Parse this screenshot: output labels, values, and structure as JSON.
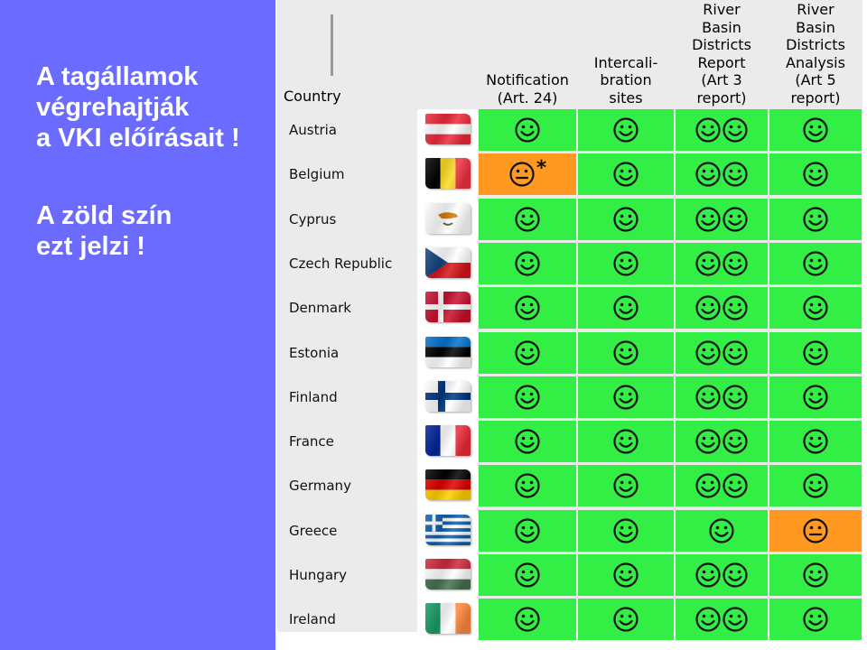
{
  "slide": {
    "title_lines": [
      "A tagállamok",
      "végrehajtják",
      "a VKI előírásait !"
    ],
    "note_lines": [
      "A zöld szín",
      "ezt jelzi !"
    ]
  },
  "table": {
    "country_header": "Country",
    "columns": [
      {
        "key": "notification",
        "lines": [
          "Notification",
          "(Art. 24)"
        ]
      },
      {
        "key": "intercalibration",
        "lines": [
          "Intercali-",
          "bration",
          "sites"
        ]
      },
      {
        "key": "rbd_report",
        "lines": [
          "River",
          "Basin",
          "Districts",
          "Report",
          "(Art 3",
          "report)"
        ]
      },
      {
        "key": "rbd_analysis",
        "lines": [
          "River",
          "Basin",
          "Districts",
          "Analysis",
          "(Art 5",
          "report)"
        ]
      }
    ],
    "rows": [
      {
        "country": "Austria",
        "flag": "austria-flag",
        "cells": [
          {
            "status": "green",
            "icon": "happy",
            "count": 1
          },
          {
            "status": "green",
            "icon": "happy",
            "count": 1
          },
          {
            "status": "green",
            "icon": "happy",
            "count": 2
          },
          {
            "status": "green",
            "icon": "happy",
            "count": 1
          }
        ]
      },
      {
        "country": "Belgium",
        "flag": "belgium-flag",
        "cells": [
          {
            "status": "orange",
            "icon": "neutral",
            "count": 1,
            "mark": "*"
          },
          {
            "status": "green",
            "icon": "happy",
            "count": 1
          },
          {
            "status": "green",
            "icon": "happy",
            "count": 2
          },
          {
            "status": "green",
            "icon": "happy",
            "count": 1
          }
        ]
      },
      {
        "country": "Cyprus",
        "flag": "cyprus-flag",
        "cells": [
          {
            "status": "green",
            "icon": "happy",
            "count": 1
          },
          {
            "status": "green",
            "icon": "happy",
            "count": 1
          },
          {
            "status": "green",
            "icon": "happy",
            "count": 2
          },
          {
            "status": "green",
            "icon": "happy",
            "count": 1
          }
        ]
      },
      {
        "country": "Czech Republic",
        "flag": "czech-flag",
        "cells": [
          {
            "status": "green",
            "icon": "happy",
            "count": 1
          },
          {
            "status": "green",
            "icon": "happy",
            "count": 1
          },
          {
            "status": "green",
            "icon": "happy",
            "count": 2
          },
          {
            "status": "green",
            "icon": "happy",
            "count": 1
          }
        ]
      },
      {
        "country": "Denmark",
        "flag": "denmark-flag",
        "cells": [
          {
            "status": "green",
            "icon": "happy",
            "count": 1
          },
          {
            "status": "green",
            "icon": "happy",
            "count": 1
          },
          {
            "status": "green",
            "icon": "happy",
            "count": 2
          },
          {
            "status": "green",
            "icon": "happy",
            "count": 1
          }
        ]
      },
      {
        "country": "Estonia",
        "flag": "estonia-flag",
        "cells": [
          {
            "status": "green",
            "icon": "happy",
            "count": 1
          },
          {
            "status": "green",
            "icon": "happy",
            "count": 1
          },
          {
            "status": "green",
            "icon": "happy",
            "count": 2
          },
          {
            "status": "green",
            "icon": "happy",
            "count": 1
          }
        ]
      },
      {
        "country": "Finland",
        "flag": "finland-flag",
        "cells": [
          {
            "status": "green",
            "icon": "happy",
            "count": 1
          },
          {
            "status": "green",
            "icon": "happy",
            "count": 1
          },
          {
            "status": "green",
            "icon": "happy",
            "count": 2
          },
          {
            "status": "green",
            "icon": "happy",
            "count": 1
          }
        ]
      },
      {
        "country": "France",
        "flag": "france-flag",
        "cells": [
          {
            "status": "green",
            "icon": "happy",
            "count": 1
          },
          {
            "status": "green",
            "icon": "happy",
            "count": 1
          },
          {
            "status": "green",
            "icon": "happy",
            "count": 2
          },
          {
            "status": "green",
            "icon": "happy",
            "count": 1
          }
        ]
      },
      {
        "country": "Germany",
        "flag": "germany-flag",
        "cells": [
          {
            "status": "green",
            "icon": "happy",
            "count": 1
          },
          {
            "status": "green",
            "icon": "happy",
            "count": 1
          },
          {
            "status": "green",
            "icon": "happy",
            "count": 2
          },
          {
            "status": "green",
            "icon": "happy",
            "count": 1
          }
        ]
      },
      {
        "country": "Greece",
        "flag": "greece-flag",
        "cells": [
          {
            "status": "green",
            "icon": "happy",
            "count": 1
          },
          {
            "status": "green",
            "icon": "happy",
            "count": 1
          },
          {
            "status": "green",
            "icon": "happy",
            "count": 1
          },
          {
            "status": "orange",
            "icon": "neutral",
            "count": 1
          }
        ]
      },
      {
        "country": "Hungary",
        "flag": "hungary-flag",
        "cells": [
          {
            "status": "green",
            "icon": "happy",
            "count": 1
          },
          {
            "status": "green",
            "icon": "happy",
            "count": 1
          },
          {
            "status": "green",
            "icon": "happy",
            "count": 2
          },
          {
            "status": "green",
            "icon": "happy",
            "count": 1
          }
        ]
      },
      {
        "country": "Ireland",
        "flag": "ireland-flag",
        "cells": [
          {
            "status": "green",
            "icon": "happy",
            "count": 1
          },
          {
            "status": "green",
            "icon": "happy",
            "count": 1
          },
          {
            "status": "green",
            "icon": "happy",
            "count": 2
          },
          {
            "status": "green",
            "icon": "happy",
            "count": 1
          }
        ]
      }
    ]
  },
  "colors": {
    "left_panel": "#6b6bff",
    "status_green": "#33ee44",
    "status_orange": "#ff9922",
    "table_background": "#ebebeb"
  }
}
